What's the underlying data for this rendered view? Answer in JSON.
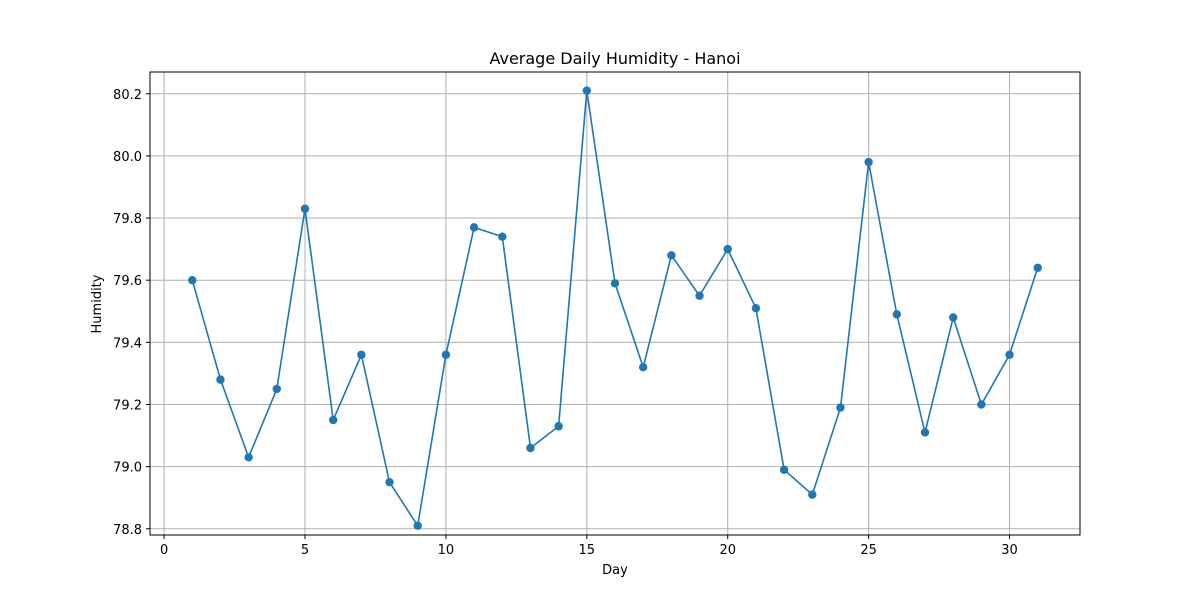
{
  "chart_data": {
    "type": "line",
    "title": "Average Daily Humidity - Hanoi",
    "xlabel": "Day",
    "ylabel": "Humidity",
    "xlim": [
      -0.5,
      32.5
    ],
    "ylim": [
      78.78,
      80.27
    ],
    "xticks": [
      0,
      5,
      10,
      15,
      20,
      25,
      30
    ],
    "yticks": [
      78.8,
      79.0,
      79.2,
      79.4,
      79.6,
      79.8,
      80.0,
      80.2
    ],
    "ytick_labels": [
      "78.8",
      "79.0",
      "79.2",
      "79.4",
      "79.6",
      "79.8",
      "80.0",
      "80.2"
    ],
    "grid": true,
    "series": [
      {
        "color": "#1f77b4",
        "marker": "circle",
        "x": [
          1,
          2,
          3,
          4,
          5,
          6,
          7,
          8,
          9,
          10,
          11,
          12,
          13,
          14,
          15,
          16,
          17,
          18,
          19,
          20,
          21,
          22,
          23,
          24,
          25,
          26,
          27,
          28,
          29,
          30,
          31
        ],
        "y": [
          79.6,
          79.28,
          79.03,
          79.25,
          79.83,
          79.15,
          79.36,
          78.95,
          78.81,
          79.36,
          79.77,
          79.74,
          79.06,
          79.13,
          80.21,
          79.59,
          79.32,
          79.68,
          79.55,
          79.7,
          79.51,
          78.99,
          78.91,
          79.19,
          79.98,
          79.49,
          79.11,
          79.48,
          79.2,
          79.36,
          79.64
        ]
      }
    ]
  }
}
